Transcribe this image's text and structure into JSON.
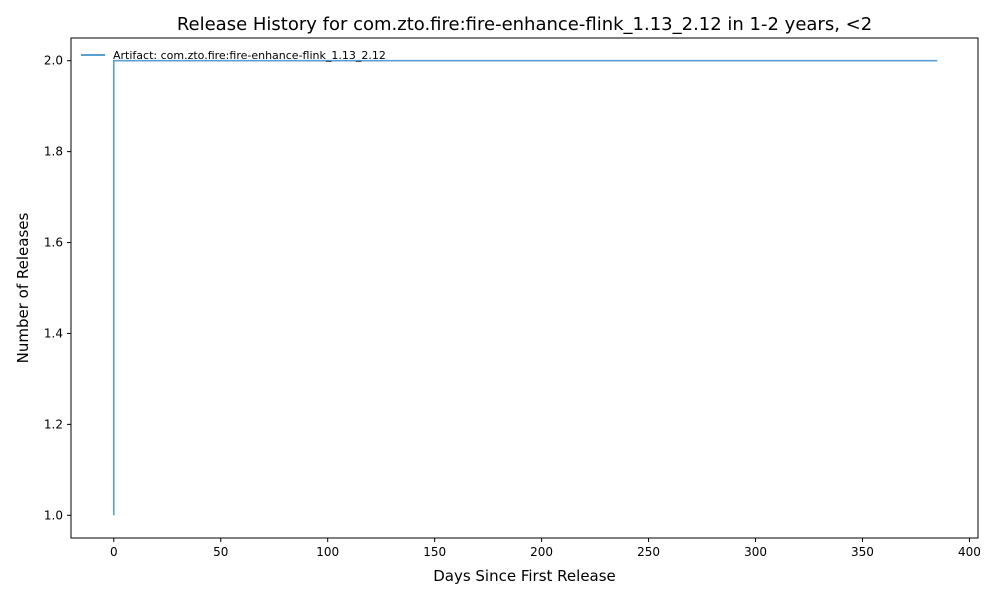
{
  "chart_data": {
    "type": "line",
    "title": "Release History for com.zto.fire:fire-enhance-flink_1.13_2.12 in 1-2 years, <2",
    "xlabel": "Days Since First Release",
    "ylabel": "Number of Releases",
    "xlim": [
      -20,
      404
    ],
    "ylim": [
      0.95,
      2.05
    ],
    "xticks": [
      0,
      50,
      100,
      150,
      200,
      250,
      300,
      350,
      400
    ],
    "yticks": [
      1.0,
      1.2,
      1.4,
      1.6,
      1.8,
      2.0
    ],
    "grid": false,
    "legend_position": "top-left",
    "series": [
      {
        "name": "Artifact: com.zto.fire:fire-enhance-flink_1.13_2.12",
        "color": "#5a9fd4",
        "step": "post",
        "x": [
          0,
          0,
          385
        ],
        "y": [
          1,
          2,
          2
        ]
      }
    ]
  }
}
